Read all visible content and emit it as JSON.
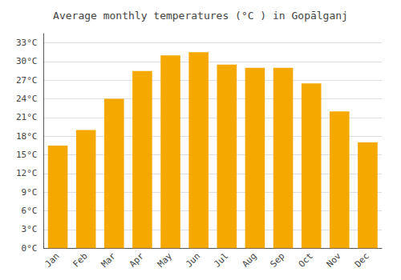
{
  "chart_data": {
    "type": "bar",
    "title": "Average monthly temperatures (°C ) in Gopālganj",
    "categories": [
      "Jan",
      "Feb",
      "Mar",
      "Apr",
      "May",
      "Jun",
      "Jul",
      "Aug",
      "Sep",
      "Oct",
      "Nov",
      "Dec"
    ],
    "values": [
      16.5,
      19.0,
      24.0,
      28.5,
      31.0,
      31.5,
      29.5,
      29.0,
      29.0,
      26.5,
      22.0,
      17.0
    ],
    "color": "#F5A800",
    "ylim": [
      0,
      34.5
    ],
    "yticks": [
      {
        "value": 0,
        "label": "0°C"
      },
      {
        "value": 3,
        "label": "3°C"
      },
      {
        "value": 6,
        "label": "6°C"
      },
      {
        "value": 9,
        "label": "9°C"
      },
      {
        "value": 12,
        "label": "12°C"
      },
      {
        "value": 15,
        "label": "15°C"
      },
      {
        "value": 18,
        "label": "18°C"
      },
      {
        "value": 21,
        "label": "21°C"
      },
      {
        "value": 24,
        "label": "24°C"
      },
      {
        "value": 27,
        "label": "27°C"
      },
      {
        "value": 30,
        "label": "30°C"
      },
      {
        "value": 33,
        "label": "33°C"
      }
    ],
    "grid": true
  }
}
